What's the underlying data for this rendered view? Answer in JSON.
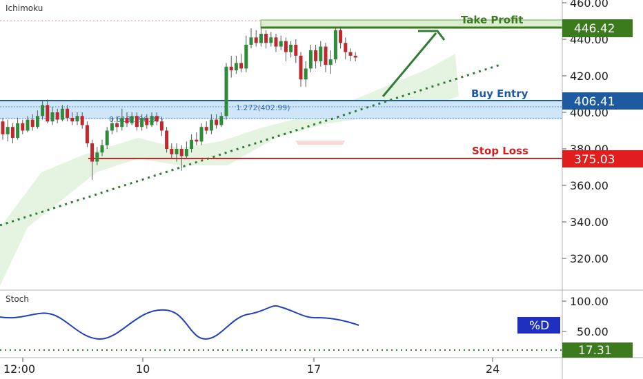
{
  "chart_data": {
    "type": "candlestick",
    "main_title": "Ichimoku",
    "sub_title": "Stoch",
    "y_ticks": [
      "460.00",
      "440.00",
      "420.00",
      "400.00",
      "380.00",
      "360.00",
      "340.00",
      "320.00"
    ],
    "stoch_ticks": [
      "100.00",
      "50.00"
    ],
    "x_ticks": [
      "12:00",
      "10",
      "17",
      "24"
    ],
    "levels": {
      "take_profit": {
        "label": "Take Profit",
        "value": "446.42",
        "y": 446.42,
        "color": "#3c7a1e"
      },
      "buy_entry": {
        "label": "Buy Entry",
        "value": "406.41",
        "y": 406.41,
        "color": "#1e5aa0"
      },
      "stop_loss": {
        "label": "Stop Loss",
        "value": "375.03",
        "y": 375.03,
        "color": "#d42020"
      }
    },
    "fib_labels": [
      "1.272(402.99)",
      "0.618(396.37)"
    ],
    "stoch_series": {
      "name": "%D",
      "value_label": "17.31",
      "color": "#1f3fbf"
    },
    "candles": [
      [
        395,
        388,
        397,
        385
      ],
      [
        388,
        392,
        396,
        384
      ],
      [
        392,
        386,
        394,
        383
      ],
      [
        386,
        394,
        397,
        385
      ],
      [
        394,
        390,
        396,
        388
      ],
      [
        390,
        396,
        398,
        389
      ],
      [
        396,
        392,
        399,
        390
      ],
      [
        392,
        398,
        401,
        391
      ],
      [
        398,
        404,
        406,
        396
      ],
      [
        404,
        395,
        407,
        394
      ],
      [
        395,
        400,
        403,
        393
      ],
      [
        400,
        396,
        402,
        394
      ],
      [
        396,
        402,
        404,
        395
      ],
      [
        402,
        397,
        404,
        395
      ],
      [
        397,
        395,
        400,
        393
      ],
      [
        395,
        398,
        400,
        393
      ],
      [
        398,
        393,
        400,
        391
      ],
      [
        393,
        383,
        395,
        381
      ],
      [
        383,
        373,
        385,
        363
      ],
      [
        373,
        378,
        381,
        371
      ],
      [
        378,
        382,
        385,
        376
      ],
      [
        382,
        390,
        392,
        380
      ],
      [
        390,
        394,
        397,
        388
      ],
      [
        394,
        392,
        398,
        389
      ],
      [
        392,
        397,
        402,
        390
      ],
      [
        397,
        394,
        400,
        392
      ],
      [
        394,
        398,
        400,
        393
      ],
      [
        398,
        392,
        400,
        390
      ],
      [
        392,
        397,
        399,
        390
      ],
      [
        397,
        393,
        399,
        391
      ],
      [
        393,
        398,
        400,
        392
      ],
      [
        398,
        395,
        400,
        393
      ],
      [
        395,
        390,
        397,
        387
      ],
      [
        390,
        380,
        392,
        378
      ],
      [
        380,
        377,
        383,
        375
      ],
      [
        377,
        380,
        383,
        373
      ],
      [
        380,
        376,
        382,
        368
      ],
      [
        376,
        380,
        384,
        375
      ],
      [
        380,
        385,
        388,
        378
      ],
      [
        385,
        384,
        389,
        382
      ],
      [
        384,
        392,
        394,
        382
      ],
      [
        392,
        390,
        395,
        388
      ],
      [
        390,
        396,
        399,
        388
      ],
      [
        396,
        393,
        399,
        391
      ],
      [
        393,
        398,
        400,
        392
      ],
      [
        398,
        425,
        427,
        396
      ],
      [
        425,
        423,
        431,
        419
      ],
      [
        423,
        427,
        431,
        421
      ],
      [
        427,
        424,
        432,
        422
      ],
      [
        424,
        437,
        442,
        422
      ],
      [
        437,
        441,
        446,
        435
      ],
      [
        441,
        438,
        445,
        436
      ],
      [
        438,
        443,
        446,
        436
      ],
      [
        443,
        438,
        445,
        435
      ],
      [
        438,
        441,
        444,
        436
      ],
      [
        441,
        436,
        443,
        433
      ],
      [
        436,
        439,
        442,
        434
      ],
      [
        439,
        433,
        441,
        428
      ],
      [
        433,
        437,
        439,
        430
      ],
      [
        437,
        431,
        440,
        427
      ],
      [
        431,
        418,
        433,
        414
      ],
      [
        418,
        424,
        428,
        414
      ],
      [
        424,
        434,
        437,
        422
      ],
      [
        434,
        428,
        437,
        424
      ],
      [
        428,
        436,
        439,
        425
      ],
      [
        436,
        426,
        438,
        422
      ],
      [
        426,
        429,
        434,
        421
      ],
      [
        429,
        445,
        446,
        427
      ],
      [
        445,
        438,
        447,
        435
      ],
      [
        438,
        433,
        441,
        429
      ],
      [
        433,
        431,
        435,
        428
      ],
      [
        431,
        430,
        433,
        428
      ]
    ]
  }
}
